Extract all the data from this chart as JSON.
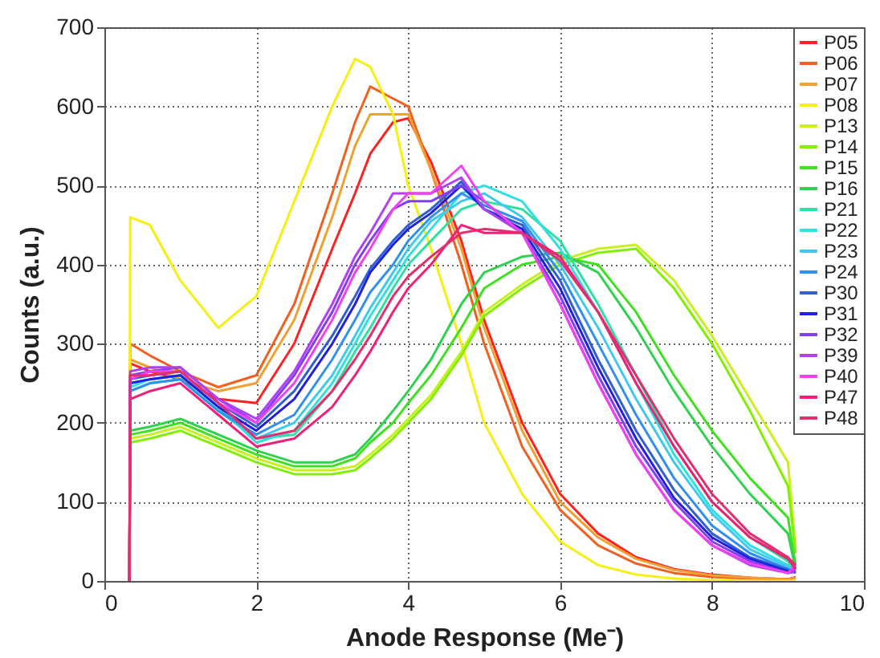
{
  "chart_data": {
    "type": "line",
    "xlabel": "Anode Response (Me⁻)",
    "ylabel": "Counts (a.u.)",
    "x": [
      0.33,
      0.34,
      0.6,
      1,
      1.5,
      2,
      2.5,
      3,
      3.3,
      3.5,
      3.8,
      4,
      4.3,
      4.7,
      5,
      5.5,
      6,
      6.5,
      7,
      7.5,
      8,
      8.5,
      9,
      9.1
    ],
    "xlim": [
      0,
      10
    ],
    "xticks": [
      0,
      2,
      4,
      6,
      8,
      10
    ],
    "ylim": [
      0,
      700
    ],
    "yticks": [
      0,
      100,
      200,
      300,
      400,
      500,
      600,
      700
    ],
    "grid": true,
    "legend": "top right",
    "line_style": "solid",
    "marker": "none",
    "series": [
      {
        "name": "P05",
        "color": "#ff2020",
        "values": [
          0,
          275,
          265,
          255,
          230,
          225,
          300,
          420,
          490,
          540,
          580,
          585,
          530,
          430,
          330,
          200,
          110,
          60,
          30,
          15,
          8,
          4,
          2,
          5
        ]
      },
      {
        "name": "P06",
        "color": "#f06020",
        "values": [
          0,
          300,
          285,
          265,
          245,
          260,
          350,
          490,
          580,
          625,
          610,
          600,
          520,
          400,
          300,
          170,
          90,
          45,
          22,
          10,
          5,
          3,
          2,
          4
        ]
      },
      {
        "name": "P07",
        "color": "#f0a030",
        "values": [
          0,
          280,
          270,
          255,
          240,
          250,
          330,
          460,
          550,
          590,
          590,
          590,
          520,
          420,
          320,
          190,
          100,
          55,
          28,
          14,
          7,
          4,
          2,
          4
        ]
      },
      {
        "name": "P08",
        "color": "#f5f010",
        "values": [
          0,
          460,
          450,
          380,
          320,
          360,
          480,
          600,
          660,
          650,
          590,
          500,
          420,
          300,
          200,
          110,
          50,
          20,
          8,
          3,
          1,
          0,
          0,
          0
        ]
      },
      {
        "name": "P13",
        "color": "#c8f020",
        "values": [
          0,
          180,
          185,
          195,
          175,
          155,
          140,
          140,
          145,
          160,
          185,
          205,
          235,
          290,
          340,
          375,
          405,
          420,
          425,
          380,
          310,
          230,
          150,
          40
        ]
      },
      {
        "name": "P14",
        "color": "#80f000",
        "values": [
          0,
          175,
          180,
          190,
          170,
          150,
          135,
          135,
          140,
          155,
          180,
          200,
          230,
          285,
          335,
          370,
          400,
          415,
          420,
          370,
          300,
          215,
          120,
          35
        ]
      },
      {
        "name": "P15",
        "color": "#40e020",
        "values": [
          0,
          185,
          190,
          200,
          180,
          160,
          145,
          145,
          155,
          175,
          200,
          225,
          260,
          320,
          370,
          400,
          410,
          400,
          340,
          260,
          190,
          130,
          80,
          20
        ]
      },
      {
        "name": "P16",
        "color": "#30d050",
        "values": [
          0,
          190,
          195,
          205,
          185,
          165,
          150,
          150,
          160,
          180,
          215,
          240,
          280,
          350,
          390,
          410,
          415,
          390,
          320,
          240,
          170,
          110,
          60,
          15
        ]
      },
      {
        "name": "P21",
        "color": "#30e0a0",
        "values": [
          0,
          240,
          250,
          255,
          215,
          180,
          185,
          240,
          290,
          320,
          370,
          400,
          430,
          470,
          480,
          470,
          430,
          350,
          260,
          170,
          100,
          55,
          25,
          10
        ]
      },
      {
        "name": "P22",
        "color": "#30e0e0",
        "values": [
          0,
          245,
          255,
          260,
          220,
          175,
          190,
          250,
          300,
          335,
          380,
          410,
          445,
          490,
          500,
          480,
          420,
          340,
          250,
          160,
          90,
          45,
          20,
          10
        ]
      },
      {
        "name": "P23",
        "color": "#40c8f0",
        "values": [
          0,
          250,
          255,
          260,
          220,
          180,
          200,
          260,
          310,
          345,
          390,
          420,
          455,
          480,
          490,
          460,
          400,
          320,
          230,
          150,
          85,
          40,
          18,
          10
        ]
      },
      {
        "name": "P24",
        "color": "#3090f0",
        "values": [
          0,
          240,
          250,
          255,
          215,
          185,
          210,
          280,
          330,
          365,
          400,
          430,
          460,
          490,
          475,
          455,
          390,
          300,
          210,
          130,
          70,
          35,
          15,
          10
        ]
      },
      {
        "name": "P30",
        "color": "#3060d0",
        "values": [
          0,
          255,
          260,
          265,
          225,
          195,
          240,
          310,
          360,
          395,
          430,
          450,
          470,
          505,
          470,
          450,
          380,
          280,
          190,
          115,
          60,
          30,
          14,
          12
        ]
      },
      {
        "name": "P31",
        "color": "#2020e0",
        "values": [
          0,
          250,
          255,
          260,
          220,
          190,
          230,
          300,
          350,
          390,
          425,
          445,
          465,
          500,
          470,
          445,
          370,
          270,
          180,
          105,
          55,
          28,
          12,
          12
        ]
      },
      {
        "name": "P32",
        "color": "#8040f0",
        "values": [
          0,
          260,
          265,
          270,
          230,
          200,
          260,
          340,
          400,
          430,
          470,
          480,
          480,
          500,
          480,
          440,
          360,
          260,
          170,
          100,
          50,
          25,
          10,
          12
        ]
      },
      {
        "name": "P39",
        "color": "#b040f0",
        "values": [
          0,
          265,
          270,
          270,
          230,
          205,
          265,
          350,
          410,
          440,
          490,
          490,
          490,
          510,
          470,
          440,
          350,
          250,
          160,
          90,
          45,
          20,
          10,
          15
        ]
      },
      {
        "name": "P40",
        "color": "#f040f0",
        "values": [
          0,
          255,
          265,
          265,
          225,
          200,
          250,
          330,
          390,
          420,
          470,
          490,
          490,
          525,
          480,
          440,
          350,
          250,
          160,
          90,
          45,
          22,
          10,
          20
        ]
      },
      {
        "name": "P47",
        "color": "#f0207a",
        "values": [
          0,
          230,
          240,
          250,
          210,
          170,
          180,
          220,
          260,
          290,
          340,
          370,
          400,
          450,
          440,
          440,
          410,
          340,
          250,
          170,
          100,
          55,
          28,
          15
        ]
      },
      {
        "name": "P48",
        "color": "#e03070",
        "values": [
          0,
          260,
          260,
          265,
          225,
          180,
          190,
          240,
          280,
          310,
          360,
          385,
          410,
          440,
          445,
          440,
          405,
          340,
          260,
          180,
          110,
          60,
          30,
          20
        ]
      }
    ]
  }
}
